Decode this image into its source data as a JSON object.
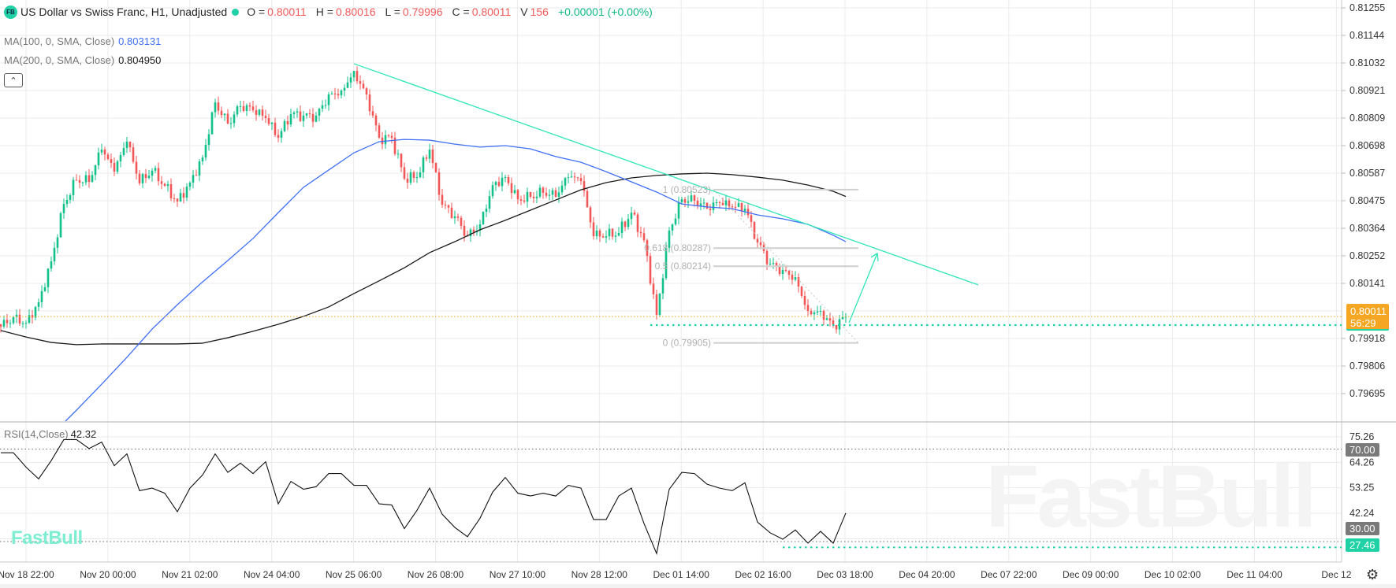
{
  "header": {
    "logo_text": "FB",
    "title": "US Dollar vs Swiss Franc, H1, Unadjusted",
    "status_color": "#1fd1a5",
    "open_label": "O =",
    "open": "0.80011",
    "high_label": "H =",
    "high": "0.80016",
    "low_label": "L =",
    "low": "0.79996",
    "close_label": "C =",
    "close": "0.80011",
    "volume_label": "V",
    "volume": "156",
    "change": "+0.00001 (+0.00%)"
  },
  "indicators": {
    "ma100": {
      "label": "MA(100, 0, SMA, Close)",
      "value": "0.803131",
      "color": "#3f6ff5"
    },
    "ma200": {
      "label": "MA(200, 0, SMA, Close)",
      "value": "0.804950",
      "color": "#1a1a1a"
    },
    "rsi": {
      "label": "RSI(14,Close)",
      "value": "42.32"
    },
    "collapse_icon": "chevron-up-icon"
  },
  "price_label": {
    "price": "0.80011",
    "countdown": "56:29",
    "color": "#f5a623"
  },
  "rsi_labels": {
    "overbought": "70.00",
    "oversold_hidden": "30.00",
    "current_low": "27.46"
  },
  "watermark": {
    "small": "FastBull",
    "big": "FastBull"
  },
  "settings_icon": "gear-icon",
  "chart_data": {
    "type": "candlestick",
    "interval": "H1",
    "colors": {
      "up": "#12c189",
      "down": "#f25656"
    },
    "price_axis": {
      "ticks": [
        "0.81255",
        "0.81144",
        "0.81032",
        "0.80921",
        "0.80809",
        "0.80698",
        "0.80587",
        "0.80475",
        "0.80364",
        "0.80252",
        "0.80141",
        "0.79918",
        "0.79806",
        "0.79695"
      ],
      "range": [
        0.7964,
        0.8129
      ]
    },
    "time_axis": {
      "ticks": [
        "Nov 18 22:00",
        "Nov 20 00:00",
        "Nov 21 02:00",
        "Nov 24 04:00",
        "Nov 25 06:00",
        "Nov 26 08:00",
        "Nov 27 10:00",
        "Nov 28 12:00",
        "Dec 01 14:00",
        "Dec 02 16:00",
        "Dec 03 18:00",
        "Dec 04 20:00",
        "Dec 07 22:00",
        "Dec 09 00:00",
        "Dec 10 02:00",
        "Dec 11 04:00",
        "Dec 12"
      ]
    },
    "close_every_4_bars": [
      0.79971,
      0.80009,
      0.79986,
      0.80069,
      0.80234,
      0.80465,
      0.80561,
      0.80554,
      0.80684,
      0.80595,
      0.80716,
      0.80548,
      0.80599,
      0.80538,
      0.80475,
      0.80551,
      0.80652,
      0.80874,
      0.80789,
      0.80859,
      0.80843,
      0.80811,
      0.80732,
      0.80827,
      0.80821,
      0.80821,
      0.80906,
      0.80922,
      0.81001,
      0.80906,
      0.80732,
      0.80732,
      0.80567,
      0.80573,
      0.80684,
      0.80462,
      0.80415,
      0.80335,
      0.80383,
      0.80541,
      0.80573,
      0.80484,
      0.80494,
      0.8051,
      0.80494,
      0.80573,
      0.80557,
      0.80335,
      0.80335,
      0.80348,
      0.8043,
      0.80319,
      0.80018,
      0.80358,
      0.80484,
      0.80478,
      0.80446,
      0.80469,
      0.80453,
      0.80446,
      0.8031,
      0.80224,
      0.80199,
      0.8017,
      0.80034,
      0.80034,
      0.79977,
      0.80011
    ],
    "last_bar": {
      "open": 0.80011,
      "high": 0.80016,
      "low": 0.79996,
      "close": 0.80011
    },
    "ma100_every_8_bars": [
      null,
      null,
      0.79533,
      0.79634,
      0.79739,
      0.79847,
      0.79961,
      0.80059,
      0.80151,
      0.80237,
      0.80326,
      0.8043,
      0.80532,
      0.80602,
      0.80671,
      0.80716,
      0.80725,
      0.80722,
      0.80706,
      0.80694,
      0.807,
      0.80687,
      0.80656,
      0.80633,
      0.80595,
      0.80554,
      0.80513,
      0.80465,
      0.80453,
      0.80446,
      0.80421,
      0.80405,
      0.80383,
      0.80339,
      0.80313
    ],
    "ma200_every_8_bars": [
      0.79955,
      0.79929,
      0.79907,
      0.79898,
      0.79901,
      0.79901,
      0.79901,
      0.79901,
      0.79904,
      0.79926,
      0.79952,
      0.7998,
      0.80012,
      0.8005,
      0.80104,
      0.80155,
      0.80208,
      0.80269,
      0.80313,
      0.80361,
      0.80399,
      0.8044,
      0.80481,
      0.80522,
      0.80551,
      0.8057,
      0.8058,
      0.80586,
      0.80589,
      0.80583,
      0.80573,
      0.80561,
      0.80541,
      0.80516,
      0.80495
    ],
    "rsi": {
      "ticks": [
        "75.26",
        "64.26",
        "53.25",
        "42.24"
      ],
      "levels": [
        70,
        30
      ],
      "range": [
        21.1,
        81.7
      ],
      "values_every_4_bars": [
        68.4,
        68.4,
        62.2,
        57.1,
        65.0,
        74.1,
        74.1,
        70.2,
        73.0,
        62.8,
        67.9,
        52.0,
        53.1,
        50.9,
        42.9,
        53.1,
        58.8,
        67.9,
        59.9,
        63.9,
        59.4,
        64.5,
        46.3,
        56.0,
        52.6,
        53.7,
        59.4,
        59.4,
        54.3,
        54.3,
        46.3,
        45.8,
        35.6,
        43.5,
        53.1,
        41.8,
        36.1,
        32.1,
        40.1,
        51.4,
        57.7,
        50.9,
        49.7,
        50.9,
        49.7,
        54.3,
        53.1,
        39.5,
        39.5,
        49.7,
        53.1,
        37.8,
        24.8,
        52.6,
        59.9,
        59.4,
        54.8,
        53.1,
        52.0,
        55.4,
        38.4,
        33.8,
        31.0,
        35.0,
        29.3,
        34.4,
        29.3,
        42.32
      ],
      "support_level": 27.46
    },
    "drawings": {
      "trendline": {
        "start_price": 0.8103,
        "end_price": 0.80139,
        "color": "#2ee6b8"
      },
      "projection_arrow": {
        "start_price": 0.79986,
        "end_price": 0.80266,
        "color": "#2ee6b8"
      },
      "support_line_price": 0.79977,
      "fibonacci": [
        {
          "label": "1 (0.80523)",
          "price": 0.80523
        },
        {
          "label": "0.618 (0.80287)",
          "price": 0.80287
        },
        {
          "label": "0.5 (0.80214)",
          "price": 0.80214
        },
        {
          "label": "0 (0.79905)",
          "price": 0.79905
        }
      ]
    }
  }
}
